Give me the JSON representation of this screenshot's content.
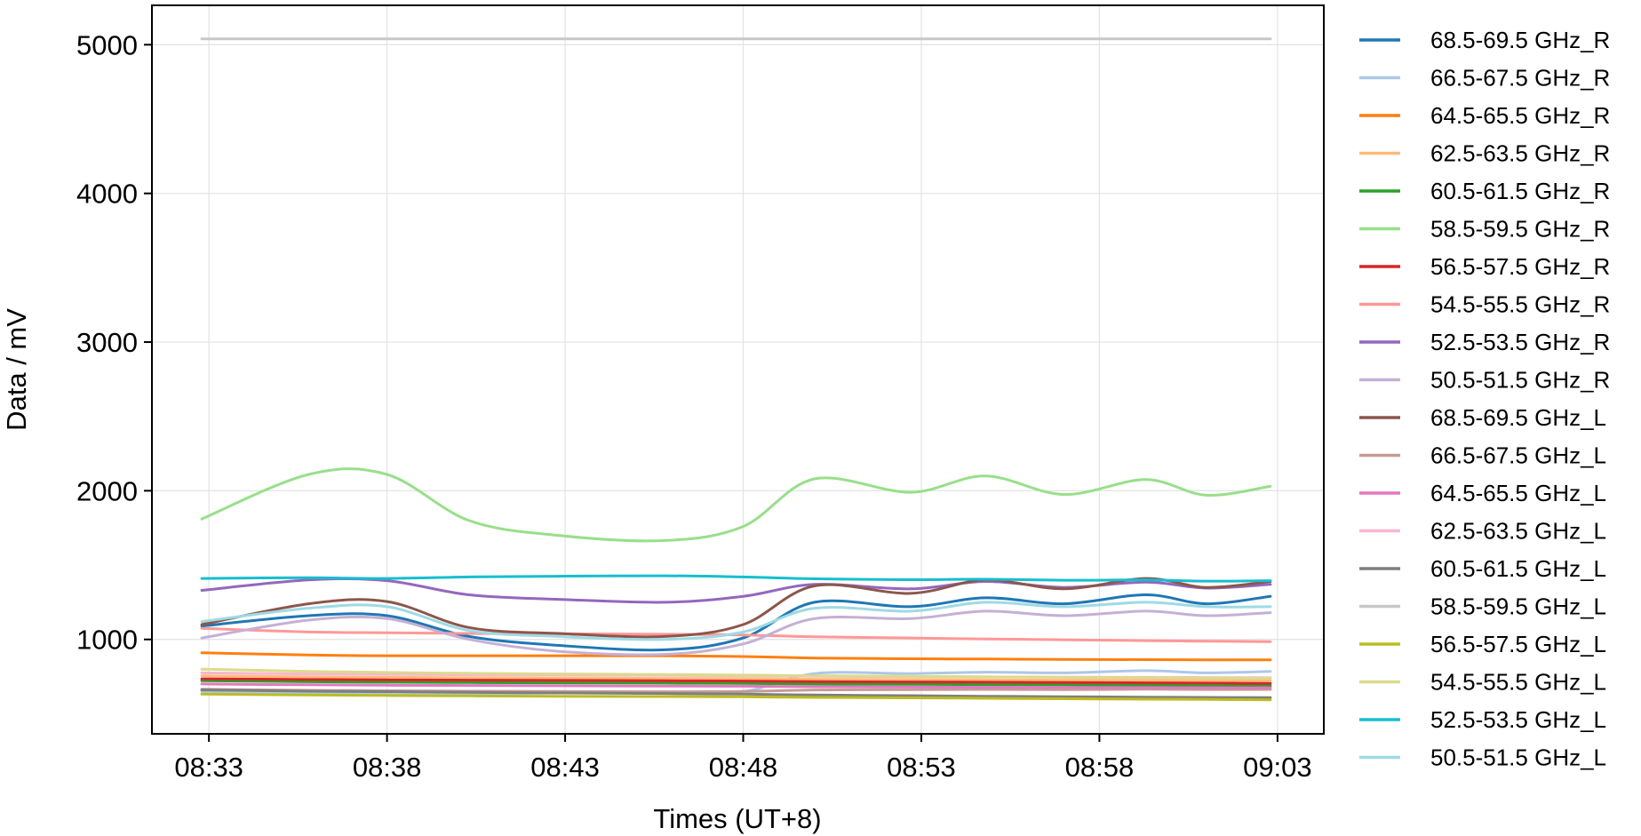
{
  "chart_data": {
    "type": "line",
    "title": "",
    "xlabel": "Times (UT+8)",
    "ylabel": "Data / mV",
    "x_ticks": [
      "08:33",
      "08:38",
      "08:43",
      "08:48",
      "08:53",
      "08:58",
      "09:03"
    ],
    "x_tick_minutes": [
      513,
      518,
      523,
      528,
      533,
      538,
      543
    ],
    "xlim": [
      "08:31",
      "09:04"
    ],
    "xlim_minutes": [
      511.4,
      544.3
    ],
    "y_ticks": [
      1000,
      2000,
      3000,
      4000,
      5000
    ],
    "ylim": [
      365,
      5265
    ],
    "grid": true,
    "legend_position": "outside-right",
    "x_time": [
      "08:32:50",
      "08:35:50",
      "08:38:00",
      "08:40:20",
      "08:42:50",
      "08:45:50",
      "08:48:00",
      "08:50:00",
      "08:52:40",
      "08:54:50",
      "08:57:00",
      "08:59:20",
      "09:01:00",
      "09:02:50"
    ],
    "x_minutes": [
      512.8,
      515.8,
      518.0,
      520.3,
      522.8,
      525.8,
      528.0,
      530.0,
      532.7,
      534.8,
      537.0,
      539.3,
      541.0,
      542.8
    ],
    "series": [
      {
        "name": "68.5-69.5 GHz_R",
        "color": "#1f77b4",
        "values": [
          1090,
          1160,
          1160,
          1020,
          960,
          930,
          1010,
          1250,
          1220,
          1280,
          1240,
          1300,
          1240,
          1290
        ]
      },
      {
        "name": "66.5-67.5 GHz_R",
        "color": "#aec7e8",
        "values": [
          650,
          640,
          630,
          630,
          640,
          640,
          650,
          770,
          770,
          780,
          775,
          790,
          775,
          785
        ]
      },
      {
        "name": "64.5-65.5 GHz_R",
        "color": "#ff7f0e",
        "values": [
          910,
          895,
          890,
          890,
          890,
          890,
          885,
          875,
          870,
          868,
          866,
          864,
          863,
          862
        ]
      },
      {
        "name": "62.5-63.5 GHz_R",
        "color": "#ffbb78",
        "values": [
          755,
          748,
          745,
          742,
          740,
          738,
          736,
          732,
          730,
          728,
          726,
          725,
          724,
          722
        ]
      },
      {
        "name": "60.5-61.5 GHz_R",
        "color": "#2ca02c",
        "values": [
          722,
          715,
          712,
          710,
          708,
          706,
          704,
          700,
          698,
          696,
          694,
          692,
          690,
          688
        ]
      },
      {
        "name": "58.5-59.5 GHz_R",
        "color": "#98df8a",
        "values": [
          1810,
          2110,
          2110,
          1800,
          1700,
          1665,
          1760,
          2080,
          1990,
          2100,
          1975,
          2075,
          1970,
          2030
        ]
      },
      {
        "name": "56.5-57.5 GHz_R",
        "color": "#d62728",
        "values": [
          735,
          730,
          728,
          726,
          724,
          722,
          720,
          716,
          714,
          712,
          710,
          708,
          706,
          704
        ]
      },
      {
        "name": "54.5-55.5 GHz_R",
        "color": "#ff9896",
        "values": [
          1075,
          1050,
          1045,
          1040,
          1038,
          1035,
          1030,
          1018,
          1010,
          1003,
          998,
          992,
          988,
          985
        ]
      },
      {
        "name": "52.5-53.5 GHz_R",
        "color": "#9467bd",
        "values": [
          1330,
          1400,
          1395,
          1300,
          1270,
          1250,
          1290,
          1370,
          1340,
          1390,
          1350,
          1385,
          1345,
          1370
        ]
      },
      {
        "name": "50.5-51.5 GHz_R",
        "color": "#c5b0d5",
        "values": [
          1010,
          1130,
          1140,
          1000,
          920,
          900,
          970,
          1140,
          1140,
          1190,
          1160,
          1190,
          1160,
          1180
        ]
      },
      {
        "name": "68.5-69.5 GHz_L",
        "color": "#8c564b",
        "values": [
          1100,
          1240,
          1255,
          1080,
          1040,
          1020,
          1100,
          1360,
          1310,
          1400,
          1340,
          1410,
          1350,
          1390
        ]
      },
      {
        "name": "66.5-67.5 GHz_L",
        "color": "#c49c94",
        "values": [
          665,
          658,
          655,
          652,
          650,
          648,
          650,
          660,
          662,
          664,
          662,
          665,
          663,
          664
        ]
      },
      {
        "name": "64.5-65.5 GHz_L",
        "color": "#e377c2",
        "values": [
          700,
          695,
          692,
          690,
          688,
          686,
          685,
          682,
          680,
          678,
          677,
          676,
          675,
          674
        ]
      },
      {
        "name": "62.5-63.5 GHz_L",
        "color": "#f7b6d2",
        "values": [
          775,
          768,
          765,
          762,
          760,
          758,
          756,
          752,
          750,
          748,
          746,
          745,
          744,
          742
        ]
      },
      {
        "name": "60.5-61.5 GHz_L",
        "color": "#7f7f7f",
        "values": [
          660,
          652,
          648,
          644,
          640,
          636,
          632,
          626,
          622,
          618,
          615,
          612,
          610,
          608
        ]
      },
      {
        "name": "58.5-59.5 GHz_L",
        "color": "#c7c7c7",
        "values": [
          5040,
          5040,
          5040,
          5040,
          5040,
          5040,
          5040,
          5040,
          5040,
          5040,
          5040,
          5040,
          5040,
          5040
        ]
      },
      {
        "name": "56.5-57.5 GHz_L",
        "color": "#bcbd22",
        "values": [
          632,
          626,
          623,
          620,
          618,
          616,
          614,
          610,
          607,
          604,
          601,
          598,
          596,
          594
        ]
      },
      {
        "name": "54.5-55.5 GHz_L",
        "color": "#dbdb8d",
        "values": [
          800,
          785,
          778,
          772,
          768,
          764,
          760,
          756,
          752,
          748,
          745,
          742,
          740,
          738
        ]
      },
      {
        "name": "52.5-53.5 GHz_L",
        "color": "#17becf",
        "values": [
          1410,
          1415,
          1410,
          1420,
          1425,
          1428,
          1420,
          1408,
          1402,
          1405,
          1398,
          1400,
          1392,
          1395
        ]
      },
      {
        "name": "50.5-51.5 GHz_L",
        "color": "#9edae5",
        "values": [
          1120,
          1210,
          1220,
          1060,
          1020,
          1000,
          1050,
          1210,
          1190,
          1250,
          1220,
          1250,
          1220,
          1220
        ]
      }
    ]
  }
}
